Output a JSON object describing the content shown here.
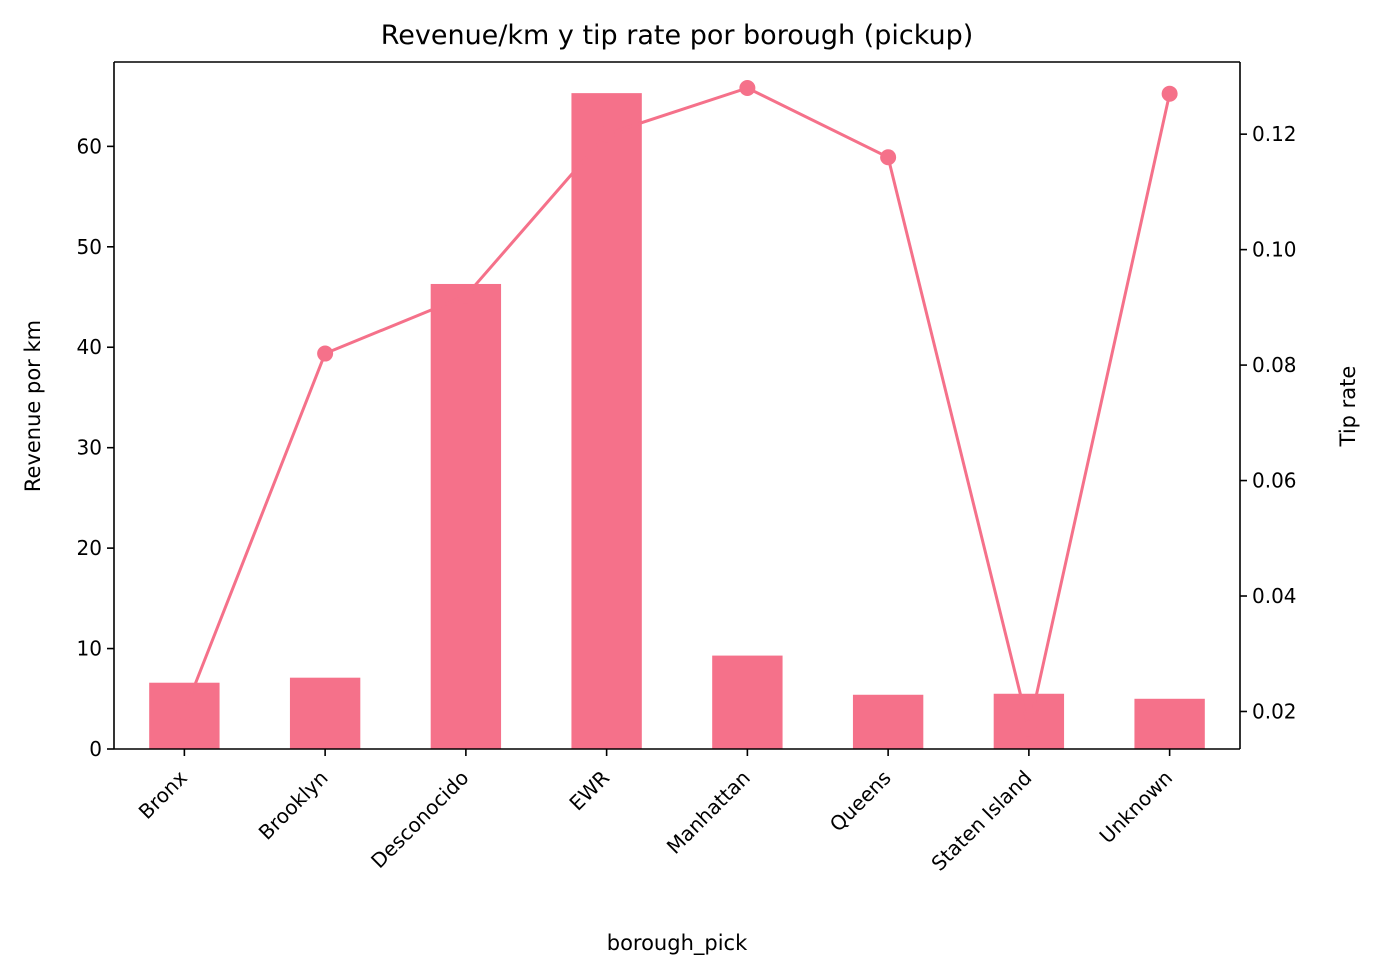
{
  "chart_data": {
    "type": "bar",
    "title": "Revenue/km y tip rate por borough (pickup)",
    "xlabel": "borough_pick",
    "ylabel": "Revenue por km",
    "y2label": "Tip rate",
    "categories": [
      "Bronx",
      "Brooklyn",
      "Desconocido",
      "EWR",
      "Manhattan",
      "Queens",
      "Staten Island",
      "Unknown"
    ],
    "series": [
      {
        "values": [
          6.6,
          7.1,
          46.3,
          65.3,
          9.3,
          5.4,
          5.5,
          5.0
        ],
        "type": "bar",
        "axis": "left"
      },
      {
        "values": [
          0.02,
          0.082,
          0.092,
          0.12,
          0.128,
          0.116,
          0.017,
          0.127
        ],
        "type": "line",
        "axis": "right",
        "markers": true
      }
    ],
    "ylim": [
      0,
      68.4
    ],
    "y2lim": [
      0.0135,
      0.1325
    ],
    "yticks": [
      "0",
      "10",
      "20",
      "30",
      "40",
      "50",
      "60"
    ],
    "y2ticks": [
      "0.02",
      "0.04",
      "0.06",
      "0.08",
      "0.10",
      "0.12"
    ],
    "color": "#f5718a",
    "grid": false,
    "legend": "none"
  }
}
